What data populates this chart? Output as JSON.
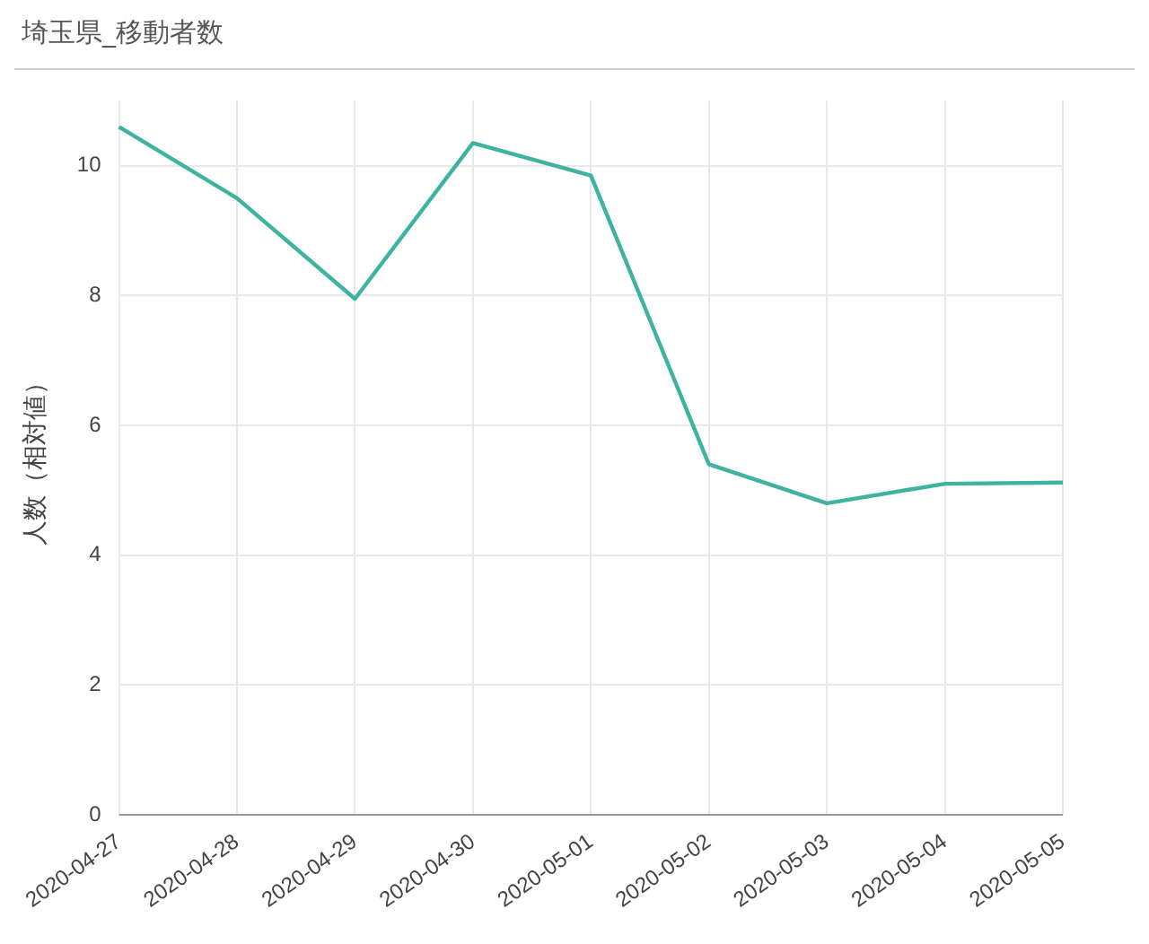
{
  "chart_data": {
    "type": "line",
    "title": "埼玉県_移動者数",
    "ylabel": "人数（相対値）",
    "categories": [
      "2020-04-27",
      "2020-04-28",
      "2020-04-29",
      "2020-04-30",
      "2020-05-01",
      "2020-05-02",
      "2020-05-03",
      "2020-05-04",
      "2020-05-05"
    ],
    "series": [
      {
        "color": "#3eb39f",
        "values": [
          10.6,
          9.5,
          7.95,
          10.35,
          9.85,
          5.4,
          4.8,
          5.1,
          5.12
        ]
      }
    ],
    "ylim": [
      0,
      11
    ],
    "yticks": [
      0,
      2,
      4,
      6,
      8,
      10
    ],
    "grid": true,
    "legend": false,
    "marker": "none",
    "line_style": "solid"
  }
}
